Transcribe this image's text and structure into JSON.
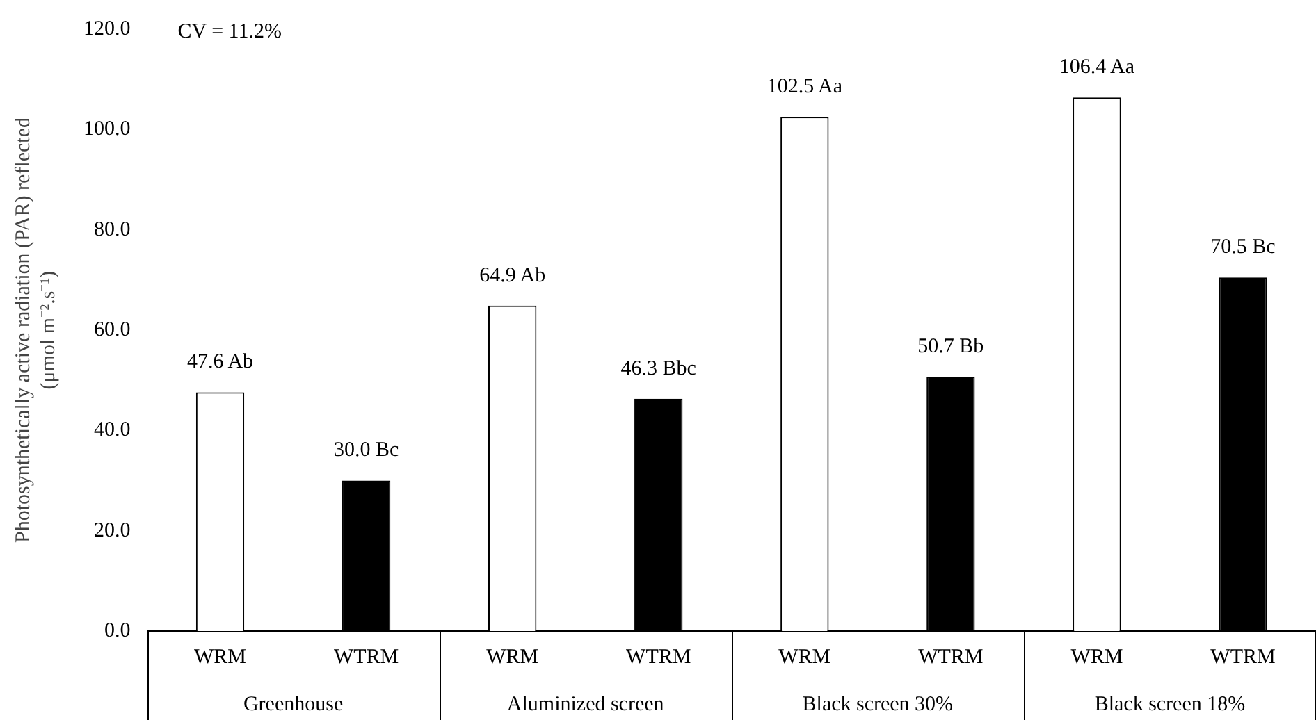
{
  "chart_data": {
    "type": "bar",
    "ylabel": "Photosynthetically active radiation (PAR) reflected (μmol m⁻².s⁻¹)",
    "categories": [
      "WRM",
      "WTRM",
      "WRM",
      "WTRM",
      "WRM",
      "WTRM",
      "WRM",
      "WTRM"
    ],
    "values": [
      47.6,
      30.0,
      64.9,
      46.3,
      102.5,
      50.7,
      106.4,
      70.5
    ],
    "colors": [
      "#ffffff",
      "#000000",
      "#ffffff",
      "#000000",
      "#ffffff",
      "#000000",
      "#ffffff",
      "#000000"
    ],
    "value_labels": [
      "47.6 Ab",
      "30.0 Bc",
      "64.9 Ab",
      "46.3 Bbc",
      "102.5 Aa",
      "50.7 Bb",
      "106.4 Aa",
      "70.5 Bc"
    ],
    "ylim": [
      0,
      120
    ],
    "yticks": [
      {
        "value": 0,
        "label": "0.0"
      },
      {
        "value": 20,
        "label": "20.0"
      },
      {
        "value": 40,
        "label": "40.0"
      },
      {
        "value": 60,
        "label": "60.0"
      },
      {
        "value": 80,
        "label": "80.0"
      },
      {
        "value": 100,
        "label": "100.0"
      },
      {
        "value": 120,
        "label": "120.0"
      }
    ],
    "annotations": [
      "CV = 11.2%",
      "Greenhouse",
      "Aluminized screen",
      "Black screen 30%",
      "Black screen 18%"
    ],
    "grid": false,
    "legend": false
  }
}
